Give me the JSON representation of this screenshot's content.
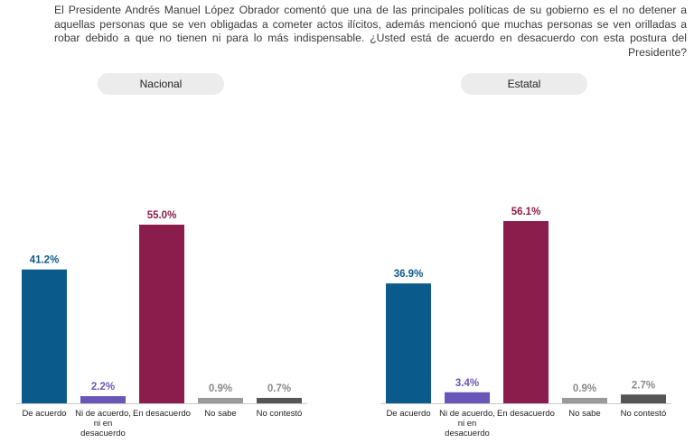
{
  "question": "El Presidente Andrés Manuel López Obrador comentó que una de las principales políticas de su gobierno es el no detener a aquellas personas que se ven obligadas a cometer actos ilícitos, además mencionó que muchas personas se ven orilladas a robar debido a que no tienen ni para lo más indispensable. ¿Usted está de acuerdo en desacuerdo con esta postura del Presidente?",
  "colors": {
    "de_acuerdo": "#0b5a8c",
    "ni_ni": "#6a55b8",
    "en_desacuerdo": "#8a1d4b",
    "no_sabe": "#9a9a9a",
    "no_contesto": "#555555",
    "label_gray": "#8a8a8a"
  },
  "chart_data": [
    {
      "type": "bar",
      "title": "Nacional",
      "categories": [
        [
          "De acuerdo"
        ],
        [
          "Ni de acuerdo,",
          "ni en",
          "desacuerdo"
        ],
        [
          "En desacuerdo"
        ],
        [
          "No sabe"
        ],
        [
          "No contestó"
        ]
      ],
      "values": [
        41.2,
        2.2,
        55.0,
        0.9,
        0.7
      ],
      "value_labels": [
        "41.2%",
        "2.2%",
        "55.0%",
        "0.9%",
        "0.7%"
      ],
      "ylim": [
        0,
        60
      ]
    },
    {
      "type": "bar",
      "title": "Estatal",
      "categories": [
        [
          "De acuerdo"
        ],
        [
          "Ni de acuerdo,",
          "ni en",
          "desacuerdo"
        ],
        [
          "En desacuerdo"
        ],
        [
          "No sabe"
        ],
        [
          "No contestó"
        ]
      ],
      "values": [
        36.9,
        3.4,
        56.1,
        0.9,
        2.7
      ],
      "value_labels": [
        "36.9%",
        "3.4%",
        "56.1%",
        "0.9%",
        "2.7%"
      ],
      "ylim": [
        0,
        60
      ]
    }
  ]
}
